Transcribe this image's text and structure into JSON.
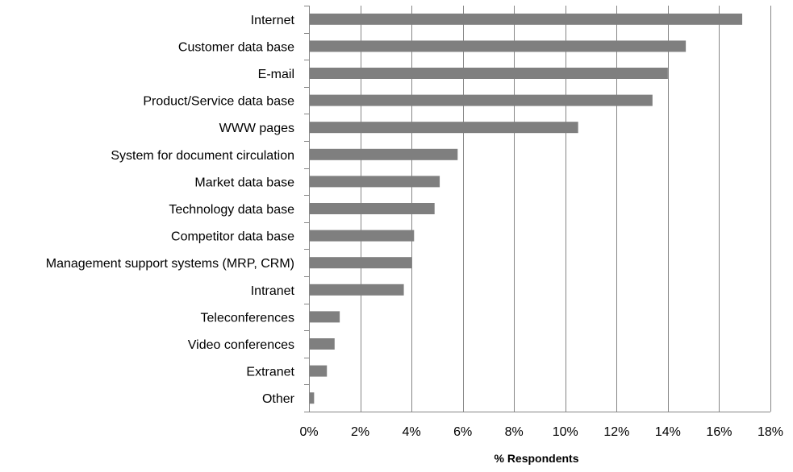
{
  "chart_data": {
    "type": "bar",
    "orientation": "horizontal",
    "categories": [
      "Internet",
      "Customer data base",
      "E-mail",
      "Product/Service data base",
      "WWW pages",
      "System for document circulation",
      "Market data base",
      "Technology data base",
      "Competitor data base",
      "Management support systems (MRP, CRM)",
      "Intranet",
      "Teleconferences",
      "Video conferences",
      "Extranet",
      "Other"
    ],
    "values": [
      16.9,
      14.7,
      14.0,
      13.4,
      10.5,
      5.8,
      5.1,
      4.9,
      4.1,
      4.0,
      3.7,
      1.2,
      1.0,
      0.7,
      0.2
    ],
    "title": "",
    "xlabel": "% Respondents",
    "ylabel": "",
    "xlim": [
      0,
      18
    ],
    "x_ticks": [
      0,
      2,
      4,
      6,
      8,
      10,
      12,
      14,
      16,
      18
    ],
    "x_tick_labels": [
      "0%",
      "2%",
      "4%",
      "6%",
      "8%",
      "10%",
      "12%",
      "14%",
      "16%",
      "18%"
    ],
    "grid": "vertical",
    "legend": "none",
    "bar_color": "#7f7f7f",
    "grid_color": "#868686"
  }
}
